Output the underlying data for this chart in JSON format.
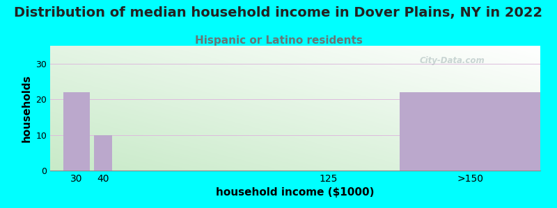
{
  "title": "Distribution of median household income in Dover Plains, NY in 2022",
  "subtitle": "Hispanic or Latino residents",
  "xlabel": "household income ($1000)",
  "ylabel": "households",
  "background_color": "#00FFFF",
  "bar_color": "#BBA8CC",
  "plot_bg_left_bottom": "#C8EAC8",
  "plot_bg_right_top": "#FFFFFF",
  "categories": [
    "30",
    "40",
    "125",
    ">150"
  ],
  "values": [
    22,
    10,
    0,
    22
  ],
  "ylim": [
    0,
    35
  ],
  "yticks": [
    0,
    10,
    20,
    30
  ],
  "title_fontsize": 14,
  "subtitle_fontsize": 11,
  "subtitle_color": "#667777",
  "watermark": "City-Data.com",
  "title_color": "#222222"
}
